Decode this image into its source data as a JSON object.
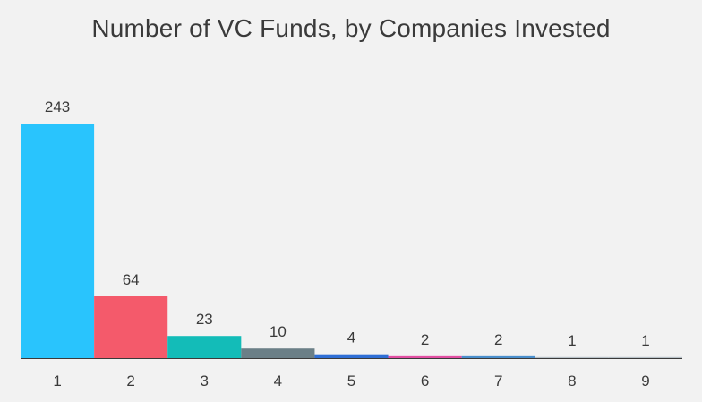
{
  "chart_data": {
    "type": "bar",
    "title": "Number of VC Funds, by Companies Invested",
    "xlabel": "",
    "ylabel": "",
    "categories": [
      "1",
      "2",
      "3",
      "4",
      "5",
      "6",
      "7",
      "8",
      "9"
    ],
    "values": [
      243,
      64,
      23,
      10,
      4,
      2,
      2,
      1,
      1
    ],
    "data_labels": [
      "243",
      "64",
      "23",
      "10",
      "4",
      "2",
      "2",
      "1",
      "1"
    ],
    "colors": [
      "#29c4fd",
      "#f45a6b",
      "#13bcb8",
      "#6b7f87",
      "#2f6fd6",
      "#e24fa3",
      "#4a8fcd",
      "#b9c2c8",
      "#b9c2c8"
    ],
    "ylim": [
      0,
      243
    ],
    "grid": false,
    "legend": "none",
    "background": "#f2f2f2",
    "axis_color": "#3a3a3a"
  }
}
